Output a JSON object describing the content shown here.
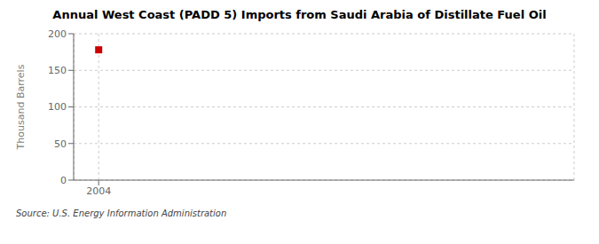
{
  "chart_data": {
    "type": "scatter",
    "title": "Annual West Coast (PADD 5) Imports from Saudi Arabia of Distillate Fuel Oil",
    "ylabel": "Thousand Barrels",
    "source": "Source: U.S. Energy Information Administration",
    "x": [
      2004
    ],
    "values": [
      178
    ],
    "color": "#cc0000",
    "marker": "square",
    "xlim": [
      2003.5,
      2013.5
    ],
    "xticks": [
      2004
    ],
    "ylim": [
      0,
      200
    ],
    "yticks": [
      0,
      50,
      100,
      150,
      200
    ],
    "grid": true
  }
}
